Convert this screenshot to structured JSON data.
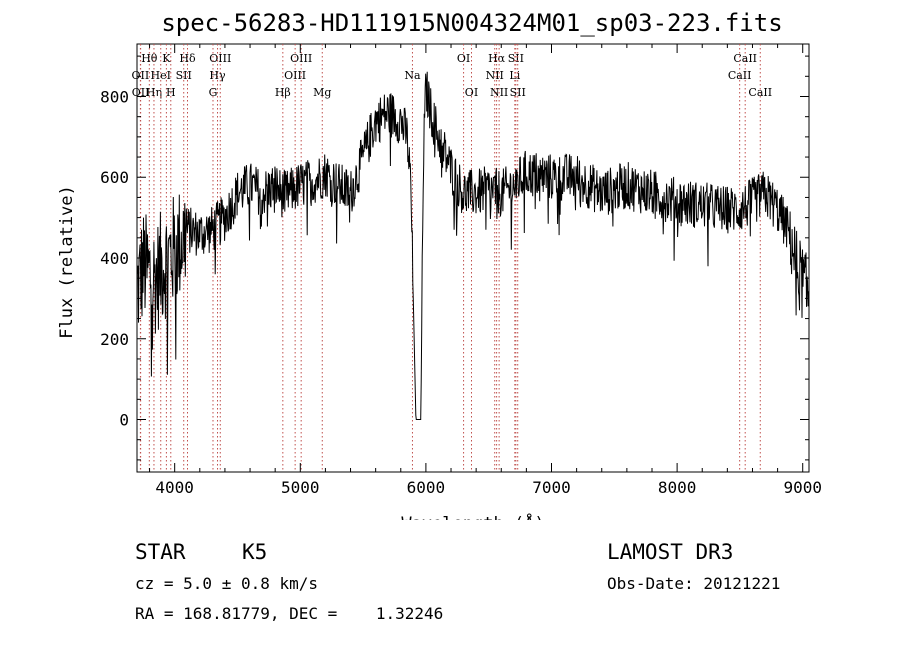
{
  "chart_data": {
    "type": "line",
    "title": "spec-56283-HD111915N004324M01_sp03-223.fits",
    "xlabel": "Wavelength (Å)",
    "ylabel": "Flux (relative)",
    "xlim": [
      3700,
      9050
    ],
    "ylim": [
      -130,
      930
    ],
    "xticks": [
      4000,
      5000,
      6000,
      7000,
      8000,
      9000
    ],
    "xtick_labels": [
      "4000",
      "5000",
      "6000",
      "7000",
      "8000",
      "9000"
    ],
    "yticks": [
      0,
      200,
      400,
      600,
      800
    ],
    "ytick_labels": [
      "0",
      "200",
      "400",
      "600",
      "800"
    ],
    "grid": false,
    "legend": "none",
    "line_color": "#000000",
    "marker_color": "#c0504d",
    "spectrum_anchors": {
      "x": [
        3700,
        3750,
        3800,
        3850,
        3900,
        3950,
        4000,
        4050,
        4100,
        4200,
        4300,
        4400,
        4500,
        4600,
        4700,
        4800,
        4850,
        4900,
        5000,
        5100,
        5200,
        5300,
        5400,
        5500,
        5600,
        5700,
        5800,
        5850,
        5880,
        5920,
        5960,
        5980,
        6000,
        6050,
        6100,
        6200,
        6300,
        6400,
        6500,
        6600,
        6700,
        6800,
        7000,
        7200,
        7400,
        7600,
        7800,
        8000,
        8200,
        8400,
        8500,
        8600,
        8700,
        8800,
        8900,
        8950,
        9000,
        9050
      ],
      "y": [
        320,
        380,
        360,
        350,
        380,
        400,
        420,
        440,
        470,
        460,
        470,
        500,
        560,
        580,
        560,
        580,
        560,
        560,
        580,
        590,
        610,
        580,
        560,
        650,
        740,
        760,
        740,
        700,
        580,
        0,
        0,
        650,
        820,
        750,
        700,
        620,
        560,
        560,
        570,
        560,
        580,
        610,
        600,
        600,
        560,
        580,
        560,
        540,
        530,
        520,
        520,
        540,
        560,
        520,
        460,
        380,
        340,
        300
      ]
    },
    "spectrum_noise": 60,
    "line_markers": [
      {
        "label": "Hθ",
        "x": 3798,
        "row": 0
      },
      {
        "label": "OII",
        "x": 3727,
        "row": 1
      },
      {
        "label": "OII",
        "x": 3729,
        "row": 2
      },
      {
        "label": "Hη",
        "x": 3835,
        "row": 2
      },
      {
        "label": "HeI",
        "x": 3889,
        "row": 1
      },
      {
        "label": "K",
        "x": 3934,
        "row": 0
      },
      {
        "label": "H",
        "x": 3969,
        "row": 2
      },
      {
        "label": "SII",
        "x": 4072,
        "row": 1
      },
      {
        "label": "Hδ",
        "x": 4102,
        "row": 0
      },
      {
        "label": "OIII",
        "x": 4363,
        "row": 0
      },
      {
        "label": "Hγ",
        "x": 4341,
        "row": 1
      },
      {
        "label": "G",
        "x": 4305,
        "row": 2
      },
      {
        "label": "Hβ",
        "x": 4861,
        "row": 2
      },
      {
        "label": "OIII",
        "x": 5007,
        "row": 0
      },
      {
        "label": "OIII",
        "x": 4959,
        "row": 1
      },
      {
        "label": "Mg",
        "x": 5175,
        "row": 2
      },
      {
        "label": "Na",
        "x": 5893,
        "row": 1
      },
      {
        "label": "OI",
        "x": 6300,
        "row": 0
      },
      {
        "label": "OI",
        "x": 6363,
        "row": 2
      },
      {
        "label": "Hα",
        "x": 6563,
        "row": 0
      },
      {
        "label": "NII",
        "x": 6548,
        "row": 1
      },
      {
        "label": "NII",
        "x": 6583,
        "row": 2
      },
      {
        "label": "SII",
        "x": 6716,
        "row": 0
      },
      {
        "label": "Li",
        "x": 6708,
        "row": 1
      },
      {
        "label": "SII",
        "x": 6731,
        "row": 2
      },
      {
        "label": "CaII",
        "x": 8542,
        "row": 0
      },
      {
        "label": "CaII",
        "x": 8498,
        "row": 1
      },
      {
        "label": "CaII",
        "x": 8662,
        "row": 2
      }
    ]
  },
  "footer": {
    "object_class": "STAR",
    "subclass": "K5",
    "cz_line": "cz = 5.0 ± 0.8 km/s",
    "radec_line": "RA = 168.81779, DEC =    1.32246",
    "survey": "LAMOST DR3",
    "obs_date_line": "Obs-Date: 20121221"
  }
}
